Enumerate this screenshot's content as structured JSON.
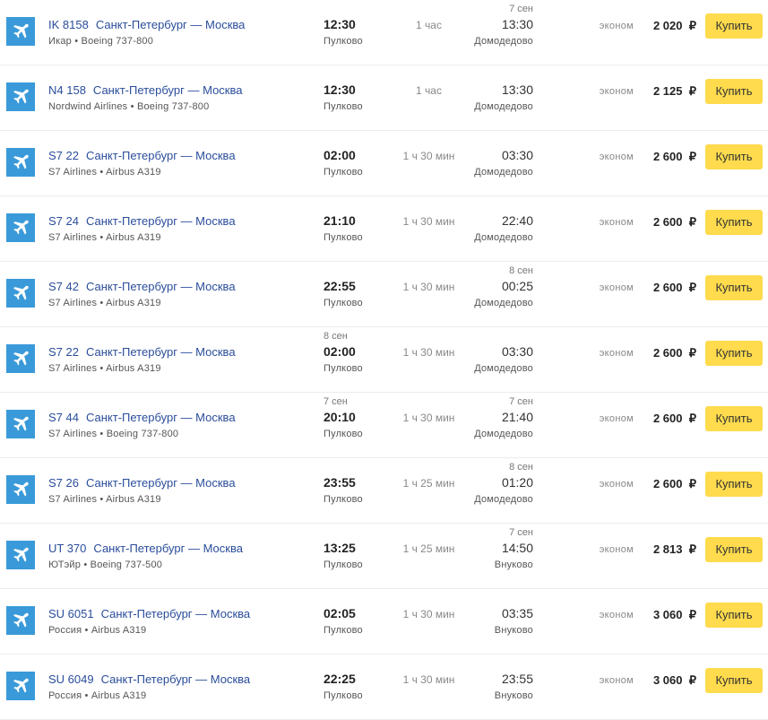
{
  "accent_color": "#ffdb4d",
  "icon_color": "#3a9ad9",
  "icon": "airplane-icon",
  "currency": "₽",
  "buy_label": "Купить",
  "flights": [
    {
      "code": "IK 8158",
      "route": "Санкт-Петербург — Москва",
      "carrier": "Икар • Boeing 737-800",
      "dep_date": "",
      "dep_time": "12:30",
      "dep_airport": "Пулково",
      "duration": "1 час",
      "arr_date": "7 сен",
      "arr_time": "13:30",
      "arr_airport": "Домодедово",
      "class": "эконом",
      "price": "2 020"
    },
    {
      "code": "N4 158",
      "route": "Санкт-Петербург — Москва",
      "carrier": "Nordwind Airlines • Boeing 737-800",
      "dep_date": "",
      "dep_time": "12:30",
      "dep_airport": "Пулково",
      "duration": "1 час",
      "arr_date": "",
      "arr_time": "13:30",
      "arr_airport": "Домодедово",
      "class": "эконом",
      "price": "2 125"
    },
    {
      "code": "S7 22",
      "route": "Санкт-Петербург — Москва",
      "carrier": "S7 Airlines • Airbus A319",
      "dep_date": "",
      "dep_time": "02:00",
      "dep_airport": "Пулково",
      "duration": "1 ч 30 мин",
      "arr_date": "",
      "arr_time": "03:30",
      "arr_airport": "Домодедово",
      "class": "эконом",
      "price": "2 600"
    },
    {
      "code": "S7 24",
      "route": "Санкт-Петербург — Москва",
      "carrier": "S7 Airlines • Airbus A319",
      "dep_date": "",
      "dep_time": "21:10",
      "dep_airport": "Пулково",
      "duration": "1 ч 30 мин",
      "arr_date": "",
      "arr_time": "22:40",
      "arr_airport": "Домодедово",
      "class": "эконом",
      "price": "2 600"
    },
    {
      "code": "S7 42",
      "route": "Санкт-Петербург — Москва",
      "carrier": "S7 Airlines • Airbus A319",
      "dep_date": "",
      "dep_time": "22:55",
      "dep_airport": "Пулково",
      "duration": "1 ч 30 мин",
      "arr_date": "8 сен",
      "arr_time": "00:25",
      "arr_airport": "Домодедово",
      "class": "эконом",
      "price": "2 600"
    },
    {
      "code": "S7 22",
      "route": "Санкт-Петербург — Москва",
      "carrier": "S7 Airlines • Airbus A319",
      "dep_date": "8 сен",
      "dep_time": "02:00",
      "dep_airport": "Пулково",
      "duration": "1 ч 30 мин",
      "arr_date": "",
      "arr_time": "03:30",
      "arr_airport": "Домодедово",
      "class": "эконом",
      "price": "2 600"
    },
    {
      "code": "S7 44",
      "route": "Санкт-Петербург — Москва",
      "carrier": "S7 Airlines • Boeing 737-800",
      "dep_date": "7 сен",
      "dep_time": "20:10",
      "dep_airport": "Пулково",
      "duration": "1 ч 30 мин",
      "arr_date": "7 сен",
      "arr_time": "21:40",
      "arr_airport": "Домодедово",
      "class": "эконом",
      "price": "2 600"
    },
    {
      "code": "S7 26",
      "route": "Санкт-Петербург — Москва",
      "carrier": "S7 Airlines • Airbus A319",
      "dep_date": "",
      "dep_time": "23:55",
      "dep_airport": "Пулково",
      "duration": "1 ч 25 мин",
      "arr_date": "8 сен",
      "arr_time": "01:20",
      "arr_airport": "Домодедово",
      "class": "эконом",
      "price": "2 600"
    },
    {
      "code": "UT 370",
      "route": "Санкт-Петербург — Москва",
      "carrier": "ЮТэйр • Boeing 737-500",
      "dep_date": "",
      "dep_time": "13:25",
      "dep_airport": "Пулково",
      "duration": "1 ч 25 мин",
      "arr_date": "7 сен",
      "arr_time": "14:50",
      "arr_airport": "Внуково",
      "class": "эконом",
      "price": "2 813"
    },
    {
      "code": "SU 6051",
      "route": "Санкт-Петербург — Москва",
      "carrier": "Россия • Airbus A319",
      "dep_date": "",
      "dep_time": "02:05",
      "dep_airport": "Пулково",
      "duration": "1 ч 30 мин",
      "arr_date": "",
      "arr_time": "03:35",
      "arr_airport": "Внуково",
      "class": "эконом",
      "price": "3 060"
    },
    {
      "code": "SU 6049",
      "route": "Санкт-Петербург — Москва",
      "carrier": "Россия • Airbus A319",
      "dep_date": "",
      "dep_time": "22:25",
      "dep_airport": "Пулково",
      "duration": "1 ч 30 мин",
      "arr_date": "",
      "arr_time": "23:55",
      "arr_airport": "Внуково",
      "class": "эконом",
      "price": "3 060"
    }
  ]
}
